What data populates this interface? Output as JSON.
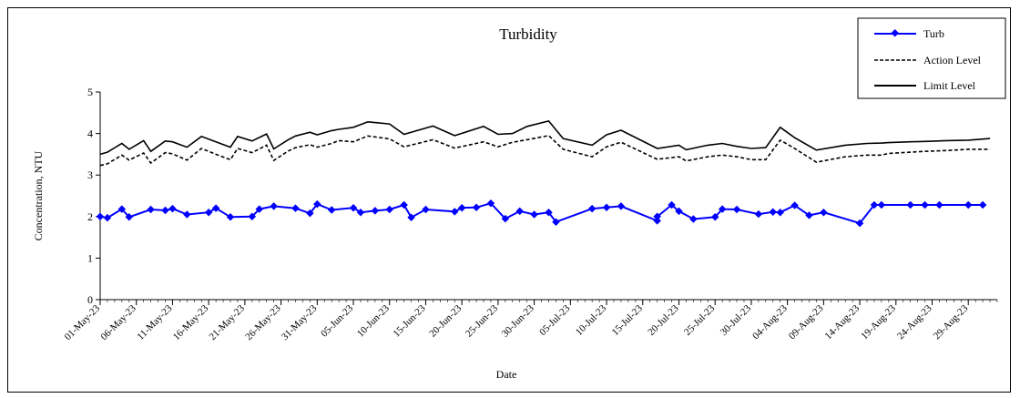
{
  "chart_data": {
    "type": "line",
    "title": "Turbidity",
    "xlabel": "Date",
    "ylabel": "Concentration, NTU",
    "ylim": [
      0,
      5
    ],
    "yticks": [
      "0",
      "1",
      "2",
      "3",
      "4",
      "5"
    ],
    "grid": false,
    "legend_position": "top-right",
    "x_tick_labels": [
      "01-May-23",
      "06-May-23",
      "11-May-23",
      "16-May-23",
      "21-May-23",
      "26-May-23",
      "31-May-23",
      "05-Jun-23",
      "10-Jun-23",
      "15-Jun-23",
      "20-Jun-23",
      "25-Jun-23",
      "30-Jun-23",
      "05-Jul-23",
      "10-Jul-23",
      "15-Jul-23",
      "20-Jul-23",
      "25-Jul-23",
      "30-Jul-23",
      "04-Aug-23",
      "09-Aug-23",
      "14-Aug-23",
      "19-Aug-23",
      "24-Aug-23",
      "29-Aug-23"
    ],
    "x_range": [
      "01-May-23",
      "02-Sep-23"
    ],
    "series": [
      {
        "name": "Turb",
        "color": "#0000ff",
        "style": "solid-diamond",
        "x": [
          "01-May-23",
          "02-May-23",
          "04-May-23",
          "05-May-23",
          "08-May-23",
          "10-May-23",
          "11-May-23",
          "13-May-23",
          "16-May-23",
          "17-May-23",
          "19-May-23",
          "22-May-23",
          "23-May-23",
          "25-May-23",
          "28-May-23",
          "30-May-23",
          "31-May-23",
          "02-Jun-23",
          "05-Jun-23",
          "06-Jun-23",
          "08-Jun-23",
          "10-Jun-23",
          "12-Jun-23",
          "13-Jun-23",
          "15-Jun-23",
          "19-Jun-23",
          "20-Jun-23",
          "22-Jun-23",
          "24-Jun-23",
          "26-Jun-23",
          "28-Jun-23",
          "30-Jun-23",
          "02-Jul-23",
          "03-Jul-23",
          "08-Jul-23",
          "10-Jul-23",
          "12-Jul-23",
          "17-Jul-23",
          "17-Jul-23",
          "19-Jul-23",
          "20-Jul-23",
          "22-Jul-23",
          "25-Jul-23",
          "26-Jul-23",
          "28-Jul-23",
          "31-Jul-23",
          "02-Aug-23",
          "03-Aug-23",
          "05-Aug-23",
          "07-Aug-23",
          "09-Aug-23",
          "14-Aug-23",
          "16-Aug-23",
          "17-Aug-23",
          "21-Aug-23",
          "23-Aug-23",
          "25-Aug-23",
          "29-Aug-23",
          "31-Aug-23"
        ],
        "values": [
          2.0,
          1.97,
          2.18,
          1.99,
          2.17,
          2.15,
          2.19,
          2.05,
          2.1,
          2.2,
          1.99,
          2.0,
          2.18,
          2.25,
          2.2,
          2.08,
          2.3,
          2.16,
          2.21,
          2.1,
          2.14,
          2.17,
          2.28,
          1.98,
          2.17,
          2.12,
          2.21,
          2.22,
          2.32,
          1.95,
          2.13,
          2.05,
          2.1,
          1.87,
          2.19,
          2.22,
          2.25,
          1.9,
          2.0,
          2.28,
          2.13,
          1.94,
          1.99,
          2.18,
          2.17,
          2.06,
          2.11,
          2.1,
          2.27,
          2.03,
          2.1,
          1.84,
          2.28,
          2.28,
          2.28,
          2.28,
          2.28,
          2.28,
          2.28
        ]
      },
      {
        "name": "Action Level",
        "color": "#000000",
        "style": "dashed",
        "x": [
          "01-May-23",
          "02-May-23",
          "04-May-23",
          "05-May-23",
          "07-May-23",
          "08-May-23",
          "10-May-23",
          "11-May-23",
          "13-May-23",
          "15-May-23",
          "17-May-23",
          "19-May-23",
          "20-May-23",
          "22-May-23",
          "24-May-23",
          "25-May-23",
          "27-May-23",
          "28-May-23",
          "30-May-23",
          "31-May-23",
          "02-Jun-23",
          "03-Jun-23",
          "05-Jun-23",
          "07-Jun-23",
          "10-Jun-23",
          "12-Jun-23",
          "16-Jun-23",
          "19-Jun-23",
          "23-Jun-23",
          "25-Jun-23",
          "27-Jun-23",
          "29-Jun-23",
          "02-Jul-23",
          "04-Jul-23",
          "08-Jul-23",
          "10-Jul-23",
          "12-Jul-23",
          "17-Jul-23",
          "20-Jul-23",
          "21-Jul-23",
          "24-Jul-23",
          "26-Jul-23",
          "28-Jul-23",
          "30-Jul-23",
          "01-Aug-23",
          "03-Aug-23",
          "05-Aug-23",
          "08-Aug-23",
          "12-Aug-23",
          "15-Aug-23",
          "17-Aug-23",
          "18-Aug-23",
          "21-Aug-23",
          "23-Aug-23",
          "26-Aug-23",
          "29-Aug-23",
          "01-Sep-23"
        ],
        "values": [
          3.23,
          3.27,
          3.48,
          3.36,
          3.53,
          3.29,
          3.54,
          3.51,
          3.36,
          3.64,
          3.5,
          3.37,
          3.64,
          3.54,
          3.72,
          3.35,
          3.58,
          3.66,
          3.73,
          3.67,
          3.76,
          3.83,
          3.8,
          3.94,
          3.87,
          3.68,
          3.85,
          3.65,
          3.8,
          3.68,
          3.79,
          3.85,
          3.95,
          3.62,
          3.44,
          3.68,
          3.79,
          3.38,
          3.44,
          3.34,
          3.44,
          3.48,
          3.44,
          3.37,
          3.37,
          3.84,
          3.64,
          3.31,
          3.44,
          3.48,
          3.48,
          3.52,
          3.55,
          3.57,
          3.59,
          3.62,
          3.62
        ]
      },
      {
        "name": "Limit Level",
        "color": "#000000",
        "style": "solid",
        "x": [
          "01-May-23",
          "02-May-23",
          "04-May-23",
          "05-May-23",
          "07-May-23",
          "08-May-23",
          "10-May-23",
          "11-May-23",
          "13-May-23",
          "15-May-23",
          "17-May-23",
          "19-May-23",
          "20-May-23",
          "22-May-23",
          "24-May-23",
          "25-May-23",
          "27-May-23",
          "28-May-23",
          "30-May-23",
          "31-May-23",
          "02-Jun-23",
          "03-Jun-23",
          "05-Jun-23",
          "07-Jun-23",
          "10-Jun-23",
          "12-Jun-23",
          "16-Jun-23",
          "19-Jun-23",
          "23-Jun-23",
          "25-Jun-23",
          "27-Jun-23",
          "29-Jun-23",
          "02-Jul-23",
          "04-Jul-23",
          "08-Jul-23",
          "10-Jul-23",
          "12-Jul-23",
          "17-Jul-23",
          "20-Jul-23",
          "21-Jul-23",
          "24-Jul-23",
          "26-Jul-23",
          "28-Jul-23",
          "30-Jul-23",
          "01-Aug-23",
          "03-Aug-23",
          "05-Aug-23",
          "08-Aug-23",
          "12-Aug-23",
          "15-Aug-23",
          "17-Aug-23",
          "18-Aug-23",
          "21-Aug-23",
          "23-Aug-23",
          "26-Aug-23",
          "29-Aug-23",
          "01-Sep-23"
        ],
        "values": [
          3.5,
          3.55,
          3.76,
          3.62,
          3.83,
          3.57,
          3.82,
          3.8,
          3.67,
          3.93,
          3.8,
          3.67,
          3.93,
          3.82,
          3.99,
          3.63,
          3.85,
          3.94,
          4.03,
          3.97,
          4.07,
          4.1,
          4.15,
          4.28,
          4.23,
          3.98,
          4.18,
          3.95,
          4.17,
          3.98,
          4.0,
          4.17,
          4.3,
          3.88,
          3.72,
          3.97,
          4.08,
          3.64,
          3.72,
          3.61,
          3.72,
          3.76,
          3.69,
          3.64,
          3.66,
          4.15,
          3.9,
          3.6,
          3.72,
          3.76,
          3.77,
          3.78,
          3.8,
          3.81,
          3.83,
          3.84,
          3.88
        ]
      }
    ]
  }
}
